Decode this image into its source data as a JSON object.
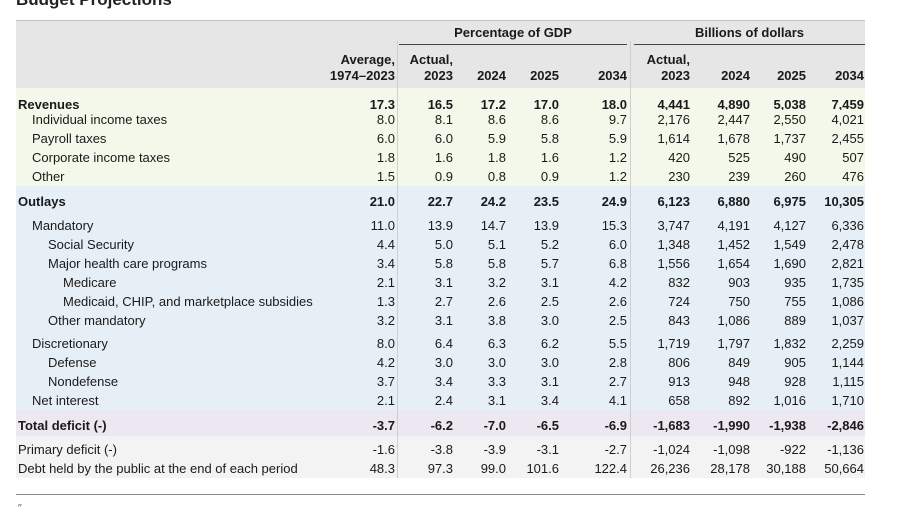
{
  "title_fragment": "Budget Projections",
  "header": {
    "group_gdp": "Percentage of GDP",
    "group_dollars": "Billions of dollars",
    "columns": [
      [
        "Average,",
        "1974–2023"
      ],
      [
        "Actual,",
        "2023"
      ],
      [
        "",
        "2024"
      ],
      [
        "",
        "2025"
      ],
      [
        "",
        "2034"
      ],
      [
        "Actual,",
        "2023"
      ],
      [
        "",
        "2024"
      ],
      [
        "",
        "2025"
      ],
      [
        "",
        "2034"
      ]
    ]
  },
  "rows": [
    {
      "label": "Revenues",
      "indent": 0,
      "bold": true,
      "bg": "rev",
      "pad_top": 7,
      "height": 22,
      "values": [
        "17.3",
        "16.5",
        "17.2",
        "17.0",
        "18.0",
        "4,441",
        "4,890",
        "5,038",
        "7,459"
      ]
    },
    {
      "label": "Individual income taxes",
      "indent": 1,
      "bold": false,
      "bg": "rev",
      "values": [
        "8.0",
        "8.1",
        "8.6",
        "8.6",
        "9.7",
        "2,176",
        "2,447",
        "2,550",
        "4,021"
      ]
    },
    {
      "label": "Payroll taxes",
      "indent": 1,
      "bold": false,
      "bg": "rev",
      "values": [
        "6.0",
        "6.0",
        "5.9",
        "5.8",
        "5.9",
        "1,614",
        "1,678",
        "1,737",
        "2,455"
      ]
    },
    {
      "label": "Corporate income taxes",
      "indent": 1,
      "bold": false,
      "bg": "rev",
      "values": [
        "1.8",
        "1.6",
        "1.8",
        "1.6",
        "1.2",
        "420",
        "525",
        "490",
        "507"
      ]
    },
    {
      "label": "Other",
      "indent": 1,
      "bold": false,
      "bg": "rev",
      "values": [
        "1.5",
        "0.9",
        "0.8",
        "0.9",
        "1.2",
        "230",
        "239",
        "260",
        "476"
      ]
    },
    {
      "label": "Outlays",
      "indent": 0,
      "bold": true,
      "bg": "out",
      "pad_top": 6,
      "height": 26,
      "values": [
        "21.0",
        "22.7",
        "24.2",
        "23.5",
        "24.9",
        "6,123",
        "6,880",
        "6,975",
        "10,305"
      ]
    },
    {
      "label": "Mandatory",
      "indent": 1,
      "bold": false,
      "bg": "out",
      "pad_top": 4,
      "height": 23,
      "values": [
        "11.0",
        "13.9",
        "14.7",
        "13.9",
        "15.3",
        "3,747",
        "4,191",
        "4,127",
        "6,336"
      ]
    },
    {
      "label": "Social Security",
      "indent": 2,
      "bold": false,
      "bg": "out",
      "values": [
        "4.4",
        "5.0",
        "5.1",
        "5.2",
        "6.0",
        "1,348",
        "1,452",
        "1,549",
        "2,478"
      ]
    },
    {
      "label": "Major health care programs",
      "indent": 2,
      "bold": false,
      "bg": "out",
      "values": [
        "3.4",
        "5.8",
        "5.8",
        "5.7",
        "6.8",
        "1,556",
        "1,654",
        "1,690",
        "2,821"
      ]
    },
    {
      "label": "Medicare",
      "indent": 3,
      "bold": false,
      "bg": "out",
      "values": [
        "2.1",
        "3.1",
        "3.2",
        "3.1",
        "4.2",
        "832",
        "903",
        "935",
        "1,735"
      ]
    },
    {
      "label": "Medicaid, CHIP, and marketplace subsidies",
      "indent": 3,
      "bold": false,
      "bg": "out",
      "values": [
        "1.3",
        "2.7",
        "2.6",
        "2.5",
        "2.6",
        "724",
        "750",
        "755",
        "1,086"
      ]
    },
    {
      "label": "Other mandatory",
      "indent": 2,
      "bold": false,
      "bg": "out",
      "values": [
        "3.2",
        "3.1",
        "3.8",
        "3.0",
        "2.5",
        "843",
        "1,086",
        "889",
        "1,037"
      ]
    },
    {
      "label": "Discretionary",
      "indent": 1,
      "bold": false,
      "bg": "out",
      "pad_top": 4,
      "height": 23,
      "values": [
        "8.0",
        "6.4",
        "6.3",
        "6.2",
        "5.5",
        "1,719",
        "1,797",
        "1,832",
        "2,259"
      ]
    },
    {
      "label": "Defense",
      "indent": 2,
      "bold": false,
      "bg": "out",
      "values": [
        "4.2",
        "3.0",
        "3.0",
        "3.0",
        "2.8",
        "806",
        "849",
        "905",
        "1,144"
      ]
    },
    {
      "label": "Nondefense",
      "indent": 2,
      "bold": false,
      "bg": "out",
      "values": [
        "3.7",
        "3.4",
        "3.3",
        "3.1",
        "2.7",
        "913",
        "948",
        "928",
        "1,115"
      ]
    },
    {
      "label": "Net interest",
      "indent": 1,
      "bold": false,
      "bg": "out",
      "values": [
        "2.1",
        "2.4",
        "3.1",
        "3.4",
        "4.1",
        "658",
        "892",
        "1,016",
        "1,710"
      ]
    },
    {
      "label": "Total deficit (-)",
      "indent": 0,
      "bold": true,
      "bg": "def",
      "pad_top": 6,
      "height": 26,
      "values": [
        "-3.7",
        "-6.2",
        "-7.0",
        "-6.5",
        "-6.9",
        "-1,683",
        "-1,990",
        "-1,938",
        "-2,846"
      ]
    },
    {
      "label": "Primary deficit (-)",
      "indent": 0,
      "bold": false,
      "bg": "plain",
      "pad_top": 4,
      "height": 23,
      "values": [
        "-1.6",
        "-3.8",
        "-3.9",
        "-3.1",
        "-2.7",
        "-1,024",
        "-1,098",
        "-922",
        "-1,136"
      ]
    },
    {
      "label": "Debt held by the public at the end of each period",
      "indent": 0,
      "bold": false,
      "bg": "plain",
      "values": [
        "48.3",
        "97.3",
        "99.0",
        "101.6",
        "122.4",
        "26,236",
        "28,178",
        "30,188",
        "50,664"
      ]
    }
  ],
  "footnote_mark": "′′"
}
